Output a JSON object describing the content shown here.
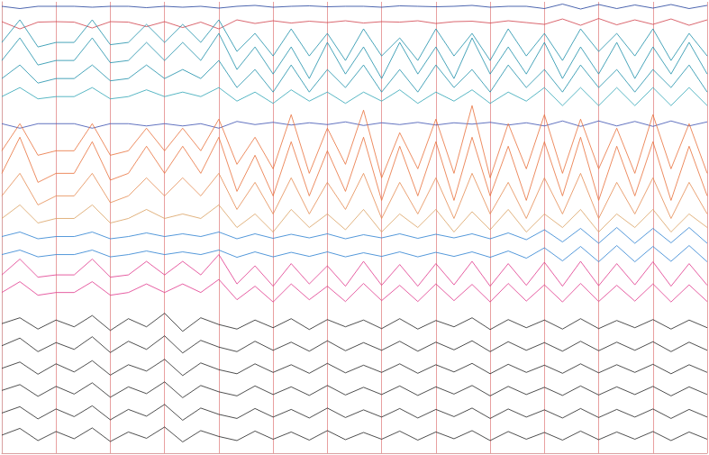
{
  "chart_data": {
    "type": "line",
    "x": [
      0,
      1,
      2,
      3,
      4,
      5,
      6,
      7,
      8,
      9,
      10,
      11,
      12,
      13,
      14,
      15,
      16,
      17,
      18,
      19,
      20,
      21,
      22,
      23,
      24,
      25,
      26,
      27,
      28,
      29,
      30,
      31,
      32,
      33,
      34,
      35,
      36,
      37,
      38,
      39
    ],
    "xlim": [
      0,
      39
    ],
    "xticks": [
      0,
      3,
      6,
      9,
      12,
      15,
      18,
      21,
      24,
      27,
      30,
      33,
      36,
      39
    ],
    "ylim": [
      0,
      100
    ],
    "grid": true,
    "tick_labels": false,
    "series": [
      {
        "color": "#1f3f9a",
        "values": [
          99,
          98.5,
          99,
          99,
          99,
          98.8,
          99,
          99,
          98.7,
          99,
          98.8,
          99,
          98.6,
          99,
          99.2,
          98.8,
          99,
          99.1,
          98.9,
          99,
          99,
          98.8,
          99.1,
          99,
          98.9,
          99,
          99.2,
          98.8,
          99,
          99,
          98.5,
          99.5,
          98.4,
          99.4,
          98.5,
          99.3,
          98.6,
          99.4,
          98.5,
          99.2
        ]
      },
      {
        "color": "#d0404a",
        "values": [
          95.6,
          94,
          95.5,
          95.6,
          95.5,
          94.2,
          95.6,
          95.5,
          94.5,
          95.6,
          94.3,
          95.5,
          94,
          96,
          95.2,
          95.8,
          95.3,
          95.7,
          95.4,
          95.8,
          95.3,
          95.6,
          95.5,
          95.8,
          95.2,
          95.6,
          95.7,
          95.3,
          95.8,
          95.4,
          95,
          96.2,
          94.8,
          96.3,
          94.9,
          96,
          95,
          96.2,
          94.8,
          96
        ]
      },
      {
        "color": "#1a8ea8",
        "values": [
          91,
          96,
          90,
          91,
          91,
          96,
          90.5,
          91,
          95,
          91,
          95,
          91,
          96,
          89,
          93,
          88,
          94,
          88,
          93,
          87,
          94,
          88,
          92,
          87,
          94,
          88,
          93,
          87,
          94,
          88,
          93,
          87,
          94,
          89,
          93,
          88,
          94,
          87,
          93,
          88
        ]
      },
      {
        "color": "#1a8ea8",
        "values": [
          87,
          92,
          86,
          87,
          87,
          92,
          86.5,
          87,
          91,
          87,
          91,
          87,
          93,
          85,
          90,
          84,
          90,
          83,
          91,
          84,
          90,
          83,
          91,
          84,
          90,
          83,
          92,
          84,
          90,
          84,
          91,
          83,
          90,
          84,
          91,
          83,
          90,
          84,
          91,
          84
        ]
      },
      {
        "color": "#1a8ea8",
        "values": [
          83,
          86,
          82,
          83,
          83,
          86,
          82.5,
          83,
          86,
          83,
          85,
          83,
          87,
          81,
          85,
          80,
          86,
          80,
          85,
          81,
          86,
          80,
          85,
          80,
          86,
          81,
          85,
          80,
          86,
          81,
          85,
          80,
          86,
          81,
          85,
          80,
          85,
          81,
          86,
          80
        ]
      },
      {
        "color": "#2fa5b5",
        "values": [
          79,
          81,
          78.5,
          79,
          79,
          81,
          78.5,
          79,
          80.5,
          79,
          80,
          79,
          81,
          78,
          80,
          77.5,
          80.5,
          78,
          80,
          77.5,
          80,
          78,
          80.5,
          77.5,
          80,
          78,
          80.5,
          77.5,
          80,
          78,
          81,
          77,
          81,
          77,
          81,
          77,
          81,
          77,
          81,
          77
        ]
      },
      {
        "color": "#3a4fb0",
        "values": [
          73,
          72,
          73,
          73,
          73,
          72,
          73,
          73,
          72.5,
          73,
          72.5,
          73,
          72,
          73.5,
          72.8,
          73.3,
          72.7,
          73.2,
          72.8,
          73.4,
          72.6,
          73.2,
          72.8,
          73.3,
          72.7,
          73.2,
          72.9,
          73.3,
          72.7,
          73.2,
          72.5,
          73.6,
          72.4,
          73.6,
          72.5,
          73.5,
          72.4,
          73.6,
          72.5,
          73.4
        ]
      },
      {
        "color": "#e8703a",
        "values": [
          67,
          73,
          66,
          67,
          67,
          73,
          66,
          67,
          72,
          67,
          72,
          67,
          74,
          64,
          70,
          63,
          75,
          62,
          72,
          64,
          76,
          61,
          71,
          63,
          74,
          62,
          77,
          61,
          73,
          63,
          75,
          62,
          74,
          63,
          72,
          62,
          75,
          63,
          73,
          62
        ]
      },
      {
        "color": "#e8703a",
        "values": [
          62,
          70,
          60,
          62,
          62,
          69,
          60.5,
          62,
          68,
          62,
          68,
          62,
          70,
          58,
          66,
          57,
          69,
          57,
          67,
          58,
          70,
          56,
          68,
          57,
          69,
          56,
          70,
          57,
          68,
          56,
          69,
          57,
          70,
          56,
          68,
          57,
          69,
          56,
          68,
          57
        ]
      },
      {
        "color": "#e58a50",
        "values": [
          57,
          62,
          55,
          57,
          57,
          62,
          55.5,
          57,
          61,
          57,
          61,
          57,
          62,
          54,
          60,
          53,
          61,
          53,
          60,
          54,
          62,
          52,
          60,
          53,
          61,
          52,
          62,
          53,
          60,
          52,
          61,
          53,
          62,
          52,
          60,
          53,
          61,
          52,
          60,
          53
        ]
      },
      {
        "color": "#d9a060",
        "values": [
          52,
          55,
          51,
          52,
          52,
          55,
          51,
          52,
          54,
          52,
          53,
          52,
          55,
          50,
          53,
          49,
          54,
          50,
          53,
          49.5,
          54,
          49,
          53,
          50,
          54,
          49,
          53.5,
          49.5,
          54,
          49,
          53,
          50,
          54,
          49,
          53,
          50,
          54,
          49,
          53,
          50
        ]
      },
      {
        "color": "#2a7fd0",
        "values": [
          48,
          49,
          47.5,
          48,
          48,
          49,
          47.5,
          48,
          48.8,
          48,
          48.6,
          48,
          49,
          47.5,
          48.6,
          47.6,
          48.5,
          47.7,
          48.6,
          47.5,
          48.4,
          47.7,
          48.6,
          47.6,
          48.5,
          47.7,
          48.6,
          47.5,
          48.8,
          47.3,
          49.5,
          46.8,
          49.8,
          46.5,
          50,
          46.5,
          49.8,
          46.6,
          50,
          46.5
        ]
      },
      {
        "color": "#2a7fd0",
        "values": [
          44,
          45,
          43.5,
          44,
          44,
          45,
          43.5,
          44,
          44.8,
          44,
          44.6,
          44,
          45,
          43.4,
          44.6,
          43.5,
          44.5,
          43.6,
          44.6,
          43.5,
          44.4,
          43.6,
          44.6,
          43.5,
          44.5,
          43.6,
          44.6,
          43.4,
          44.8,
          43.2,
          45.5,
          42.6,
          45.8,
          42.4,
          46,
          42.4,
          45.8,
          42.5,
          46,
          42.4
        ]
      },
      {
        "color": "#e0358a",
        "values": [
          39.5,
          43,
          39,
          39.5,
          39.5,
          43,
          39,
          39.5,
          42.5,
          39.5,
          42.5,
          39.5,
          44,
          37.5,
          41.5,
          37,
          42,
          37.5,
          41.5,
          37,
          42.5,
          37.2,
          41.8,
          37,
          42,
          37.3,
          42.5,
          37,
          42,
          37.2,
          42.3,
          37,
          42.5,
          37.1,
          42,
          37.3,
          42.4,
          37,
          42,
          37.2
        ]
      },
      {
        "color": "#e0358a",
        "values": [
          35.6,
          38,
          35,
          35.6,
          35.6,
          38,
          35,
          35.6,
          37.5,
          35.6,
          37.5,
          35.6,
          38.5,
          34,
          37,
          33.5,
          37.5,
          34,
          37,
          33.6,
          37.6,
          33.8,
          37.2,
          33.6,
          37.5,
          33.8,
          37.4,
          33.5,
          37.6,
          33.7,
          37.3,
          33.5,
          37.6,
          33.6,
          37.2,
          33.7,
          37.5,
          33.5,
          37.3,
          33.6
        ]
      },
      {
        "color": "#222222",
        "values": [
          28.7,
          30,
          27.5,
          29.5,
          28,
          30.5,
          27.2,
          29.8,
          28,
          31,
          27,
          30,
          28.5,
          27.5,
          29.5,
          27.8,
          29.8,
          27.4,
          29.6,
          28,
          29.5,
          27.6,
          29.8,
          27.5,
          29.4,
          28,
          30,
          27.4,
          29.6,
          27.8,
          29.5,
          27.5,
          29.8,
          27.6,
          29.4,
          27.8,
          29.6,
          27.5,
          29.5,
          27.8
        ]
      },
      {
        "color": "#222222",
        "values": [
          23.8,
          25.5,
          22.5,
          24.5,
          23,
          25.8,
          22.3,
          24.8,
          23,
          26,
          22.2,
          25,
          23.5,
          22.5,
          24.8,
          22.8,
          24.6,
          22.6,
          24.9,
          22.7,
          24.5,
          22.8,
          24.8,
          22.6,
          24.6,
          22.9,
          24.9,
          22.5,
          24.7,
          22.8,
          24.5,
          22.6,
          24.8,
          22.7,
          24.6,
          22.8,
          24.7,
          22.5,
          24.6,
          22.8
        ]
      },
      {
        "color": "#222222",
        "values": [
          18.8,
          20.2,
          17.5,
          19.8,
          18,
          20.5,
          17.3,
          19.6,
          18.2,
          20.8,
          17.2,
          20,
          18.5,
          17.6,
          19.8,
          17.9,
          19.6,
          17.7,
          19.9,
          17.8,
          19.5,
          17.9,
          19.8,
          17.7,
          19.6,
          18,
          19.9,
          17.6,
          19.7,
          17.9,
          19.5,
          17.7,
          19.8,
          17.8,
          19.6,
          17.9,
          19.7,
          17.6,
          19.6,
          17.9
        ]
      },
      {
        "color": "#222222",
        "values": [
          13.9,
          15.2,
          12.6,
          14.8,
          13.1,
          15.6,
          12.4,
          14.7,
          13.2,
          15.8,
          12.3,
          15,
          13.6,
          12.7,
          14.9,
          13,
          14.7,
          12.8,
          15,
          12.9,
          14.6,
          13,
          14.9,
          12.8,
          14.7,
          13.1,
          15,
          12.7,
          14.8,
          13,
          14.6,
          12.8,
          14.9,
          12.9,
          14.7,
          13,
          14.8,
          12.7,
          14.7,
          13
        ]
      },
      {
        "color": "#222222",
        "values": [
          8.9,
          10.3,
          7.6,
          9.8,
          8.1,
          10.5,
          7.4,
          9.7,
          8.2,
          10.8,
          7.3,
          10,
          8.6,
          7.7,
          9.9,
          8,
          9.7,
          7.8,
          10,
          7.9,
          9.6,
          8,
          9.9,
          7.8,
          9.7,
          8.1,
          10,
          7.7,
          9.8,
          8,
          9.6,
          7.8,
          9.9,
          7.9,
          9.7,
          8,
          9.8,
          7.7,
          9.7,
          8
        ]
      },
      {
        "color": "#222222",
        "values": [
          4,
          5.5,
          2.8,
          4.8,
          3.2,
          5.6,
          2.6,
          4.7,
          3.3,
          5.8,
          2.5,
          5,
          3.7,
          2.8,
          4.9,
          3.1,
          4.7,
          2.9,
          5,
          3,
          4.6,
          3.1,
          4.9,
          2.9,
          4.7,
          3.2,
          5,
          2.8,
          4.8,
          3.1,
          4.6,
          2.9,
          4.9,
          3,
          4.7,
          3.1,
          4.8,
          2.8,
          4.7,
          3.1
        ]
      }
    ]
  }
}
